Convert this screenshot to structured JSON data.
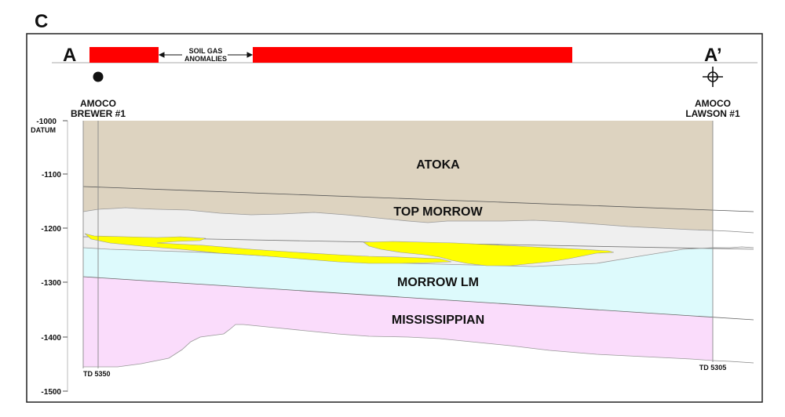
{
  "panel_letter": "C",
  "section": {
    "left_label": "A",
    "right_label": "A’",
    "anomaly_label_line1": "SOIL GAS",
    "anomaly_label_line2": "ANOMALIES",
    "anomaly_color": "#ff0000"
  },
  "wells": [
    {
      "name_line1": "AMOCO",
      "name_line2": "BREWER #1",
      "symbol": "filled-circle-well-icon",
      "td_label": "TD 5350"
    },
    {
      "name_line1": "AMOCO",
      "name_line2": "LAWSON #1",
      "symbol": "dry-hole-well-icon",
      "td_label": "TD 5305"
    }
  ],
  "depth_axis": {
    "datum_label": "DATUM",
    "ticks": [
      "-1000",
      "-1100",
      "-1200",
      "-1300",
      "-1400",
      "-1500"
    ]
  },
  "units": [
    {
      "name": "ATOKA",
      "color": "#ddd3c0"
    },
    {
      "name": "TOP MORROW",
      "color": "#efefef"
    },
    {
      "name": "MORROW LM",
      "color": "#ddfafc"
    },
    {
      "name": "MISSISSIPPIAN",
      "color": "#fadcfb"
    }
  ],
  "sand_color": "#ffff00"
}
